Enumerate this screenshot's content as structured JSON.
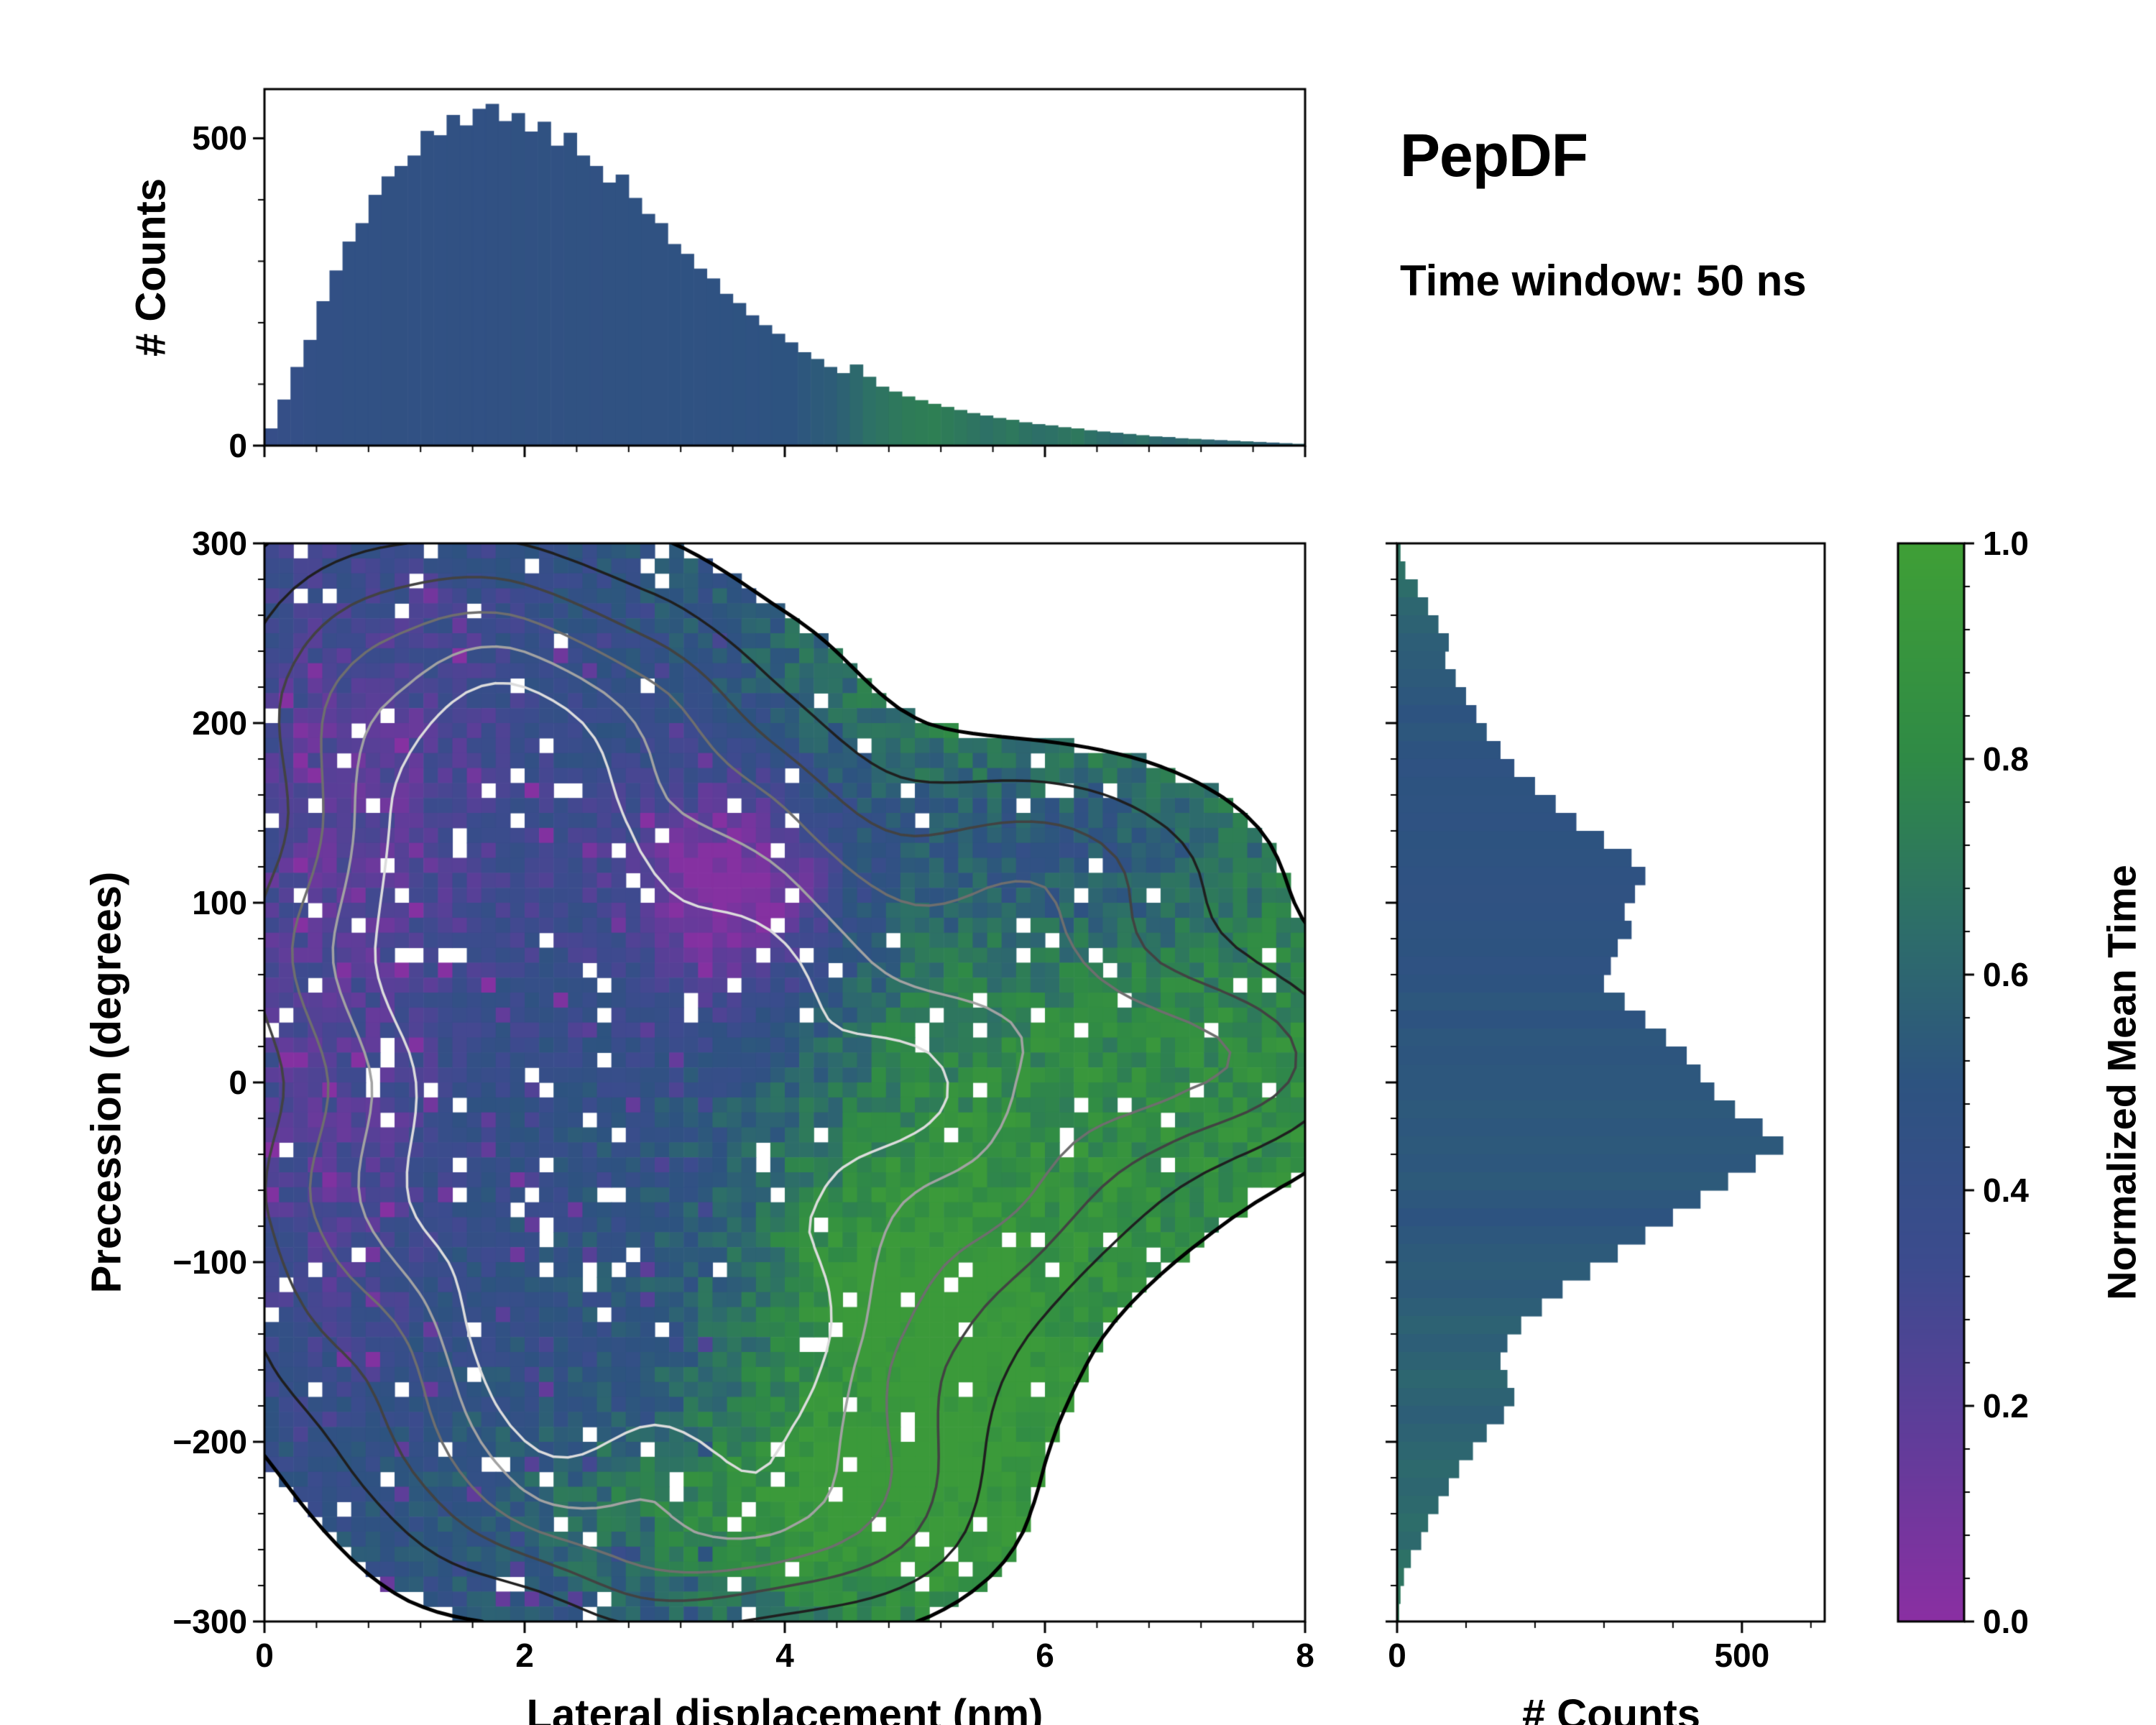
{
  "header": {
    "title": "PepDF",
    "subtitle": "Time window: 50 ns"
  },
  "colormap": {
    "stops": [
      [
        0.0,
        "#8a2fa2"
      ],
      [
        0.18,
        "#5e3d99"
      ],
      [
        0.33,
        "#3c4b8e"
      ],
      [
        0.5,
        "#2d5380"
      ],
      [
        0.64,
        "#2d6d6a"
      ],
      [
        0.8,
        "#2f8a46"
      ],
      [
        1.0,
        "#3f9f36"
      ]
    ]
  },
  "chart_data": {
    "main": {
      "type": "heatmap",
      "xlabel": "Lateral displacement (nm)",
      "ylabel": "Precession (degrees)",
      "xlim": [
        0,
        8
      ],
      "ylim": [
        -300,
        300
      ],
      "xticks": [
        {
          "v": 0,
          "t": "0"
        },
        {
          "v": 2,
          "t": "2"
        },
        {
          "v": 4,
          "t": "4"
        },
        {
          "v": 6,
          "t": "6"
        },
        {
          "v": 8,
          "t": "8"
        }
      ],
      "yticks": [
        {
          "v": 300,
          "t": "300"
        },
        {
          "v": 200,
          "t": "200"
        },
        {
          "v": 100,
          "t": "100"
        },
        {
          "v": 0,
          "t": "0"
        },
        {
          "v": -100,
          "t": "−100"
        },
        {
          "v": -200,
          "t": "−200"
        },
        {
          "v": -300,
          "t": "−300"
        }
      ],
      "color_quantity": "Normalized Mean Time",
      "heatmap": {
        "nx": 72,
        "ny": 72,
        "seed": 42,
        "fill_threshold": 0.16,
        "hole_fraction": 0.05,
        "density_blobs": [
          {
            "x": 1.8,
            "y": -20,
            "sx": 1.35,
            "sy": 115,
            "a": 1.0
          },
          {
            "x": 2.3,
            "y": 150,
            "sx": 1.5,
            "sy": 85,
            "a": 0.72
          },
          {
            "x": 3.0,
            "y": -185,
            "sx": 1.35,
            "sy": 70,
            "a": 0.6
          },
          {
            "x": 5.3,
            "y": 15,
            "sx": 1.7,
            "sy": 70,
            "a": 0.55
          },
          {
            "x": 7.2,
            "y": 15,
            "sx": 0.9,
            "sy": 35,
            "a": 0.35
          },
          {
            "x": 6.1,
            "y": 130,
            "sx": 1.1,
            "sy": 38,
            "a": 0.38
          },
          {
            "x": 4.6,
            "y": -90,
            "sx": 1.2,
            "sy": 85,
            "a": 0.5
          },
          {
            "x": 1.0,
            "y": 230,
            "sx": 0.9,
            "sy": 60,
            "a": 0.35
          },
          {
            "x": 3.8,
            "y": -250,
            "sx": 1.2,
            "sy": 35,
            "a": 0.3
          }
        ],
        "color_base": 0.45,
        "green_sigmoid": {
          "x0": 4.3,
          "k": 0.55,
          "amp": 0.38
        },
        "color_blobs": [
          {
            "x": 0.7,
            "y": 150,
            "sx": 1.0,
            "sy": 110,
            "a": -0.26
          },
          {
            "x": 3.6,
            "y": 105,
            "sx": 0.6,
            "sy": 48,
            "a": -0.5
          },
          {
            "x": 0.5,
            "y": -70,
            "sx": 0.55,
            "sy": 70,
            "a": -0.18
          },
          {
            "x": 6.2,
            "y": 128,
            "sx": 1.3,
            "sy": 45,
            "a": -0.3
          },
          {
            "x": 4.8,
            "y": -130,
            "sx": 0.85,
            "sy": 60,
            "a": 0.28
          },
          {
            "x": 3.8,
            "y": -240,
            "sx": 1.3,
            "sy": 40,
            "a": 0.3
          }
        ],
        "color_noise": 0.11,
        "purple_speckle_fraction": 0.05,
        "contour_noise_amp": 0.16,
        "contour_noise_scale": 8
      },
      "contours": {
        "levels": [
          0.16,
          0.3,
          0.45,
          0.6,
          0.75,
          0.9
        ],
        "colors": [
          "#000000",
          "#1f1f1f",
          "#424242",
          "#6e6e6e",
          "#a2a2a2",
          "#dcdcdc"
        ]
      }
    },
    "top_hist": {
      "type": "bar",
      "ylabel": "# Counts",
      "ylim": [
        0,
        580
      ],
      "yticks": [
        {
          "v": 0,
          "t": "0"
        },
        {
          "v": 500,
          "t": "500"
        }
      ],
      "bin_start": 0,
      "bin_width": 0.1,
      "values": [
        28,
        75,
        128,
        172,
        235,
        285,
        332,
        362,
        408,
        438,
        455,
        472,
        512,
        505,
        538,
        521,
        548,
        556,
        528,
        541,
        511,
        527,
        488,
        509,
        472,
        455,
        428,
        441,
        403,
        377,
        362,
        328,
        312,
        288,
        272,
        247,
        232,
        212,
        196,
        182,
        168,
        152,
        141,
        128,
        118,
        132,
        112,
        96,
        88,
        80,
        74,
        68,
        63,
        58,
        53,
        49,
        45,
        42,
        38,
        35,
        33,
        30,
        28,
        25,
        23,
        21,
        19,
        17,
        15,
        14,
        12,
        11,
        10,
        9,
        8,
        7,
        6,
        5,
        4,
        3
      ],
      "color_values": [
        0.4,
        0.41,
        0.42,
        0.43,
        0.44,
        0.44,
        0.45,
        0.45,
        0.45,
        0.46,
        0.46,
        0.45,
        0.46,
        0.45,
        0.46,
        0.46,
        0.45,
        0.46,
        0.46,
        0.47,
        0.46,
        0.47,
        0.46,
        0.47,
        0.47,
        0.46,
        0.47,
        0.47,
        0.48,
        0.47,
        0.47,
        0.48,
        0.48,
        0.47,
        0.48,
        0.48,
        0.49,
        0.48,
        0.49,
        0.5,
        0.5,
        0.52,
        0.54,
        0.55,
        0.58,
        0.62,
        0.66,
        0.68,
        0.7,
        0.72,
        0.73,
        0.74,
        0.72,
        0.7,
        0.68,
        0.66,
        0.68,
        0.7,
        0.67,
        0.65,
        0.66,
        0.68,
        0.7,
        0.66,
        0.64,
        0.62,
        0.64,
        0.66,
        0.62,
        0.6,
        0.62,
        0.64,
        0.6,
        0.58,
        0.6,
        0.62,
        0.58,
        0.56,
        0.58,
        0.6
      ]
    },
    "right_hist": {
      "type": "bar",
      "xlabel": "# Counts",
      "xlim": [
        0,
        620
      ],
      "xticks": [
        {
          "v": 0,
          "t": "0"
        },
        {
          "v": 500,
          "t": "500"
        }
      ],
      "bin_start": 300,
      "bin_width": 10,
      "values": [
        5,
        12,
        30,
        45,
        60,
        75,
        70,
        85,
        100,
        115,
        130,
        150,
        170,
        200,
        230,
        260,
        300,
        340,
        360,
        345,
        330,
        340,
        320,
        310,
        300,
        330,
        360,
        390,
        420,
        440,
        460,
        490,
        530,
        560,
        520,
        480,
        440,
        400,
        360,
        320,
        280,
        240,
        210,
        180,
        160,
        150,
        160,
        170,
        155,
        130,
        110,
        90,
        75,
        60,
        45,
        35,
        20,
        10,
        5,
        3
      ],
      "color_values": [
        0.68,
        0.66,
        0.64,
        0.6,
        0.58,
        0.56,
        0.55,
        0.54,
        0.52,
        0.5,
        0.52,
        0.5,
        0.48,
        0.5,
        0.49,
        0.48,
        0.5,
        0.49,
        0.48,
        0.47,
        0.48,
        0.49,
        0.5,
        0.48,
        0.5,
        0.52,
        0.5,
        0.52,
        0.51,
        0.52,
        0.52,
        0.53,
        0.52,
        0.53,
        0.52,
        0.54,
        0.52,
        0.5,
        0.52,
        0.54,
        0.55,
        0.54,
        0.56,
        0.58,
        0.56,
        0.58,
        0.6,
        0.58,
        0.56,
        0.58,
        0.6,
        0.62,
        0.6,
        0.62,
        0.64,
        0.62,
        0.66,
        0.68,
        0.7,
        0.72
      ]
    },
    "colorbar": {
      "label": "Normalized Mean Time",
      "range": [
        0,
        1
      ],
      "ticks": [
        {
          "v": 0.0,
          "t": "0.0"
        },
        {
          "v": 0.2,
          "t": "0.2"
        },
        {
          "v": 0.4,
          "t": "0.4"
        },
        {
          "v": 0.6,
          "t": "0.6"
        },
        {
          "v": 0.8,
          "t": "0.8"
        },
        {
          "v": 1.0,
          "t": "1.0"
        }
      ]
    }
  }
}
